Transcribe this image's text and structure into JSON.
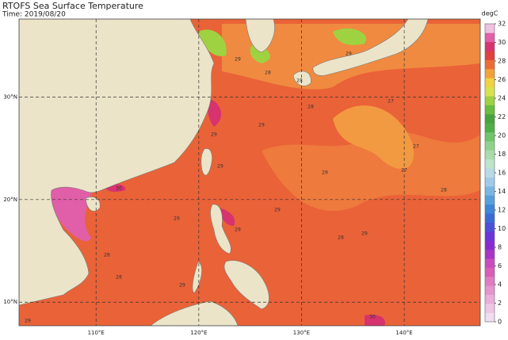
{
  "header": {
    "title": "RTOFS Sea Surface Temperature",
    "time": "Time: 2019/08/20"
  },
  "map": {
    "lon_ticks": [
      {
        "value": 110,
        "label": "110°E"
      },
      {
        "value": 120,
        "label": "120°E"
      },
      {
        "value": 130,
        "label": "130°E"
      },
      {
        "value": 140,
        "label": "140°E"
      }
    ],
    "lat_ticks": [
      {
        "value": 30,
        "label": "30°N"
      },
      {
        "value": 20,
        "label": "20°N"
      },
      {
        "value": 10,
        "label": "10°N"
      }
    ],
    "lon_lim": [
      102.5,
      147.4
    ],
    "lat_lim": [
      7.7,
      37.6
    ],
    "contour_labels": [
      "29",
      "28",
      "28",
      "29",
      "27",
      "28",
      "29",
      "29",
      "27",
      "28",
      "29",
      "29",
      "30",
      "29",
      "28",
      "29",
      "27",
      "29",
      "28",
      "29",
      "29",
      "30",
      "29",
      "28"
    ]
  },
  "colorbar": {
    "label": "degC",
    "lim": [
      0,
      32
    ],
    "ticks": [
      0,
      2,
      4,
      6,
      8,
      10,
      12,
      14,
      16,
      18,
      20,
      22,
      24,
      26,
      28,
      30,
      32
    ],
    "colors": [
      "#f2dcef",
      "#eec6e6",
      "#e9aedb",
      "#e595cd",
      "#e07bc2",
      "#d85fb8",
      "#c84cc0",
      "#a935c7",
      "#8a2bd0",
      "#6a36d8",
      "#4c4fd8",
      "#3b6ad6",
      "#3e86d8",
      "#58a0dc",
      "#7ab6e2",
      "#9fcae8",
      "#b7dbe6",
      "#bfe4cd",
      "#a9dcac",
      "#8fd28c",
      "#6fc46c",
      "#4fb04a",
      "#45a43c",
      "#68bd3c",
      "#9fd241",
      "#d7e34a",
      "#f1d23f",
      "#f3a23b",
      "#ed6c35",
      "#e0403e",
      "#d7336e",
      "#e05fa8",
      "#f0c0e0"
    ]
  }
}
